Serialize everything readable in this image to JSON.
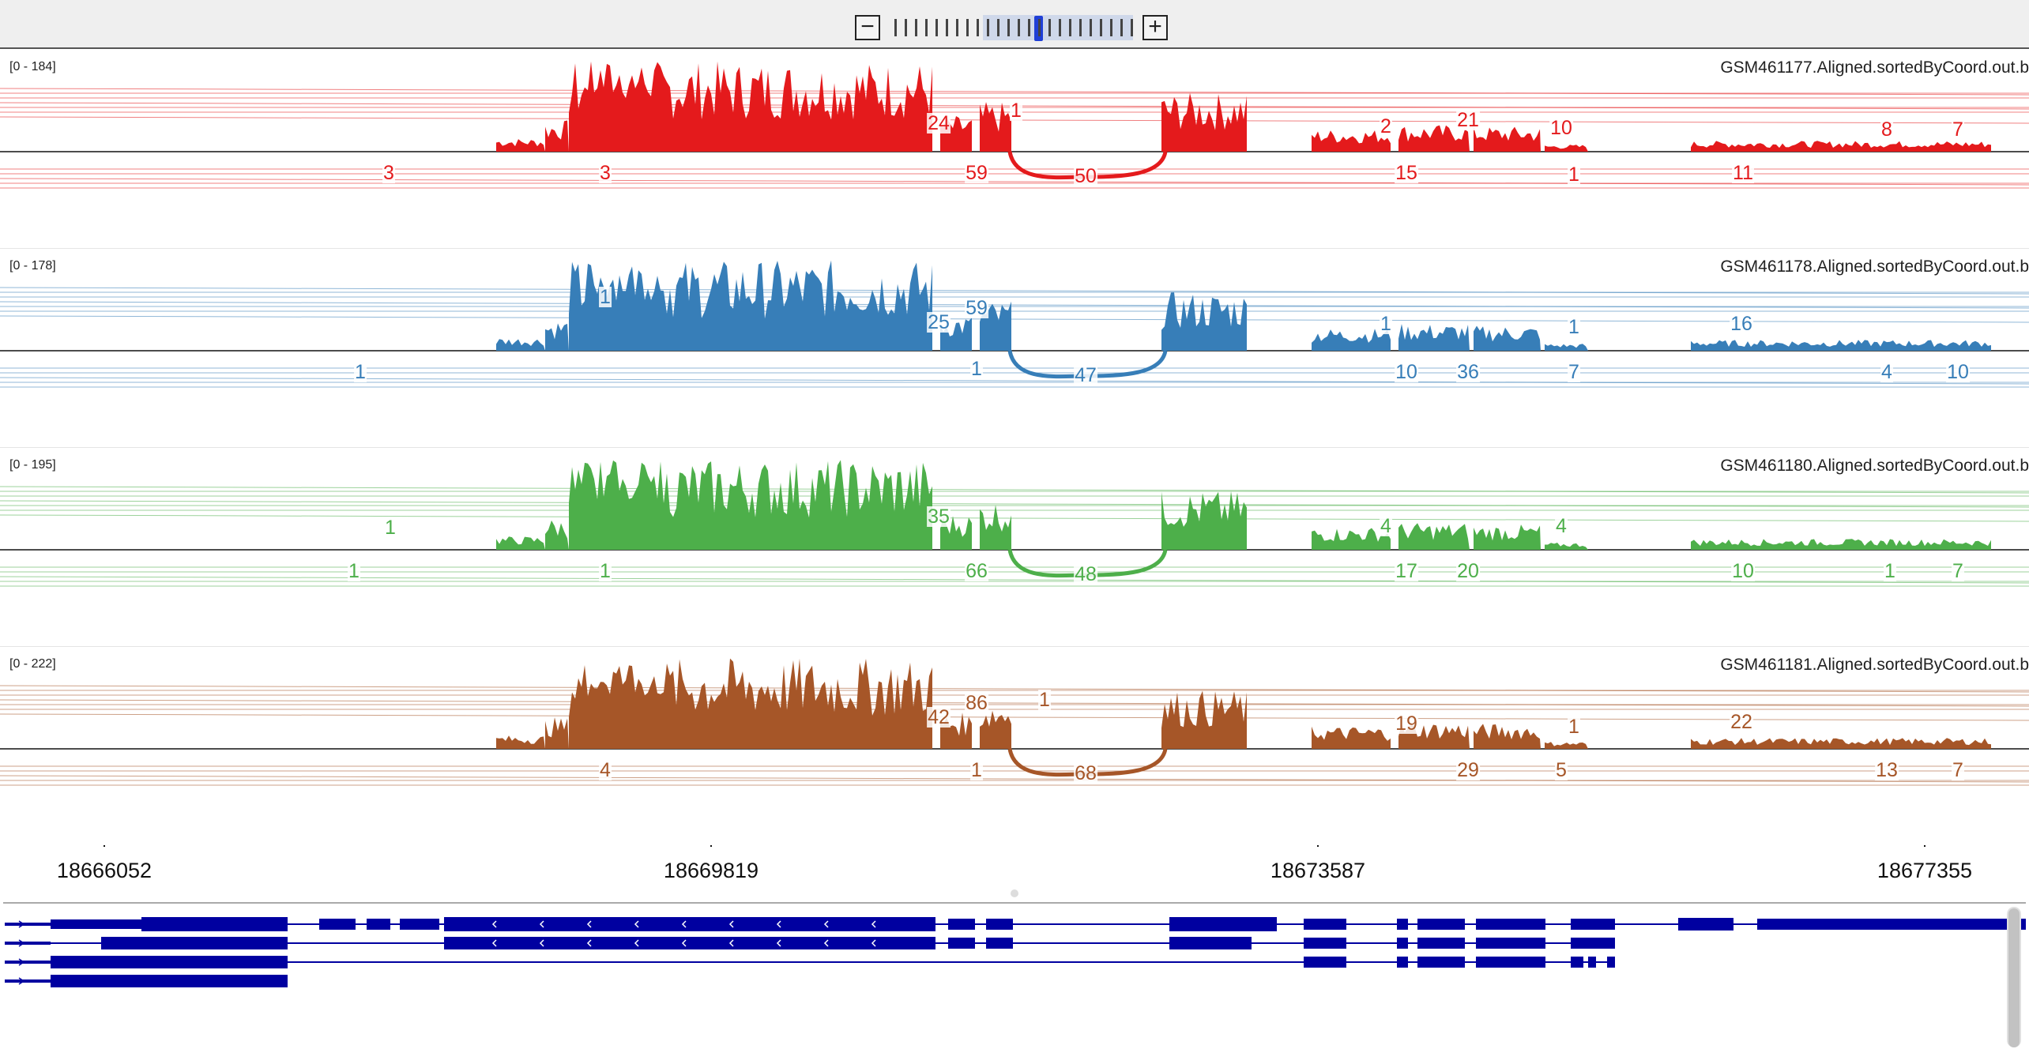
{
  "toolbar": {
    "zoom_out_label": "−",
    "zoom_in_label": "+",
    "zoom_level": 8,
    "zoom_levels": 24
  },
  "colors": {
    "red": "#e41a1c",
    "blue": "#377eb8",
    "green": "#4daf4a",
    "brown": "#a65628",
    "gene": "#0000a0"
  },
  "tracks": [
    {
      "range_label": "[0 - 184]",
      "name": "GSM461177.Aligned.sortedByCoord.out.b",
      "color": "#e41a1c",
      "junctions_above": [
        "24",
        "1",
        "2",
        "21",
        "10",
        "8",
        "7"
      ],
      "junctions_below": [
        "3",
        "3",
        "59",
        "50",
        "15",
        "1",
        "11"
      ]
    },
    {
      "range_label": "[0 - 178]",
      "name": "GSM461178.Aligned.sortedByCoord.out.b",
      "color": "#377eb8",
      "junctions_above": [
        "1",
        "25",
        "59",
        "1",
        "1",
        "16"
      ],
      "junctions_below": [
        "1",
        "1",
        "47",
        "10",
        "36",
        "7",
        "4",
        "10"
      ]
    },
    {
      "range_label": "[0 - 195]",
      "name": "GSM461180.Aligned.sortedByCoord.out.b",
      "color": "#4daf4a",
      "junctions_above": [
        "1",
        "35",
        "4",
        "4"
      ],
      "junctions_below": [
        "1",
        "1",
        "66",
        "48",
        "17",
        "20",
        "10",
        "1",
        "7"
      ]
    },
    {
      "range_label": "[0 - 222]",
      "name": "GSM461181.Aligned.sortedByCoord.out.b",
      "color": "#a65628",
      "junctions_above": [
        "42",
        "86",
        "1",
        "19",
        "1",
        "22"
      ],
      "junctions_below": [
        "4",
        "1",
        "68",
        "29",
        "5",
        "13",
        "7"
      ]
    }
  ],
  "axis": {
    "tick_labels": [
      "18666052",
      "18669819",
      "18673587",
      "18677355"
    ]
  },
  "gene_track": {
    "rows": 4,
    "direction_rows": [
      "forward",
      "forward",
      "forward",
      "forward"
    ]
  }
}
